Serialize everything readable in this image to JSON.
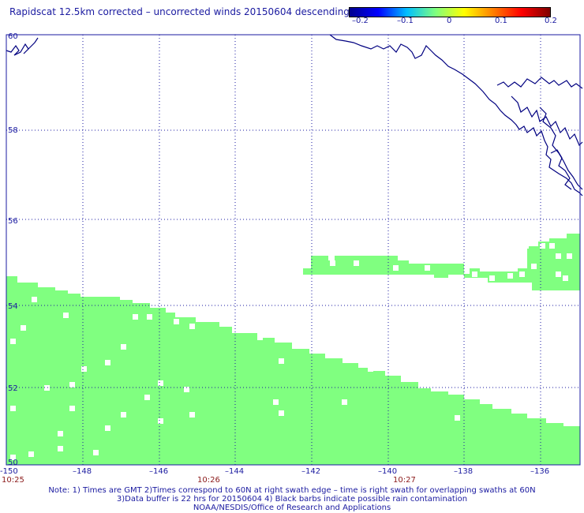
{
  "title": "Rapidscat 12.5km corrected – uncorrected winds 20150604 descending",
  "colorbar": {
    "labels": [
      "–0.2",
      "–0.1",
      "0",
      "0.1",
      "0.2"
    ],
    "colors": [
      "#00008f",
      "#0000ff",
      "#00bfff",
      "#7fff7f",
      "#ffff00",
      "#ff8000",
      "#ff0000",
      "#800000"
    ]
  },
  "map": {
    "lon_ticks": [
      "–148",
      "–146",
      "–144",
      "–142",
      "–140",
      "–138",
      "–136"
    ],
    "lon_corner": "-150",
    "lat_ticks": [
      "60",
      "58",
      "56",
      "54",
      "52",
      "50"
    ],
    "time_labels": [
      "10:25",
      "10:26",
      "10:27"
    ],
    "swath_color": "#80ff80",
    "grid_color": "#1a1aa0",
    "coast_color": "#000080"
  },
  "notes": [
    "Note: 1) Times are GMT 2)Times correspond to 60N at right swath edge – time is right swath for overlapping swaths at 60N",
    "3)Data buffer is 22 hrs for 20150604 4) Black barbs indicate possible rain contamination",
    "NOAA/NESDIS/Office of Research and Applications"
  ]
}
